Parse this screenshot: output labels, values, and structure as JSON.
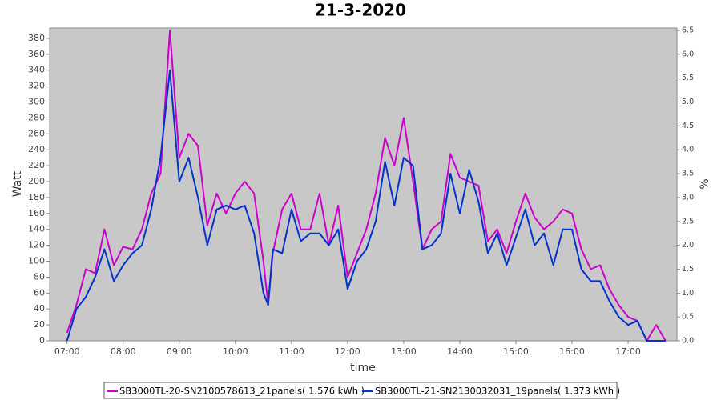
{
  "chart_data": {
    "type": "line",
    "title": "21-3-2020",
    "x_label": "time",
    "y_label": "Watt",
    "y2_label": "%",
    "x": [
      7,
      7.1667,
      7.3333,
      7.5,
      7.6667,
      7.8333,
      8,
      8.1667,
      8.3333,
      8.5,
      8.6667,
      8.8333,
      9,
      9.1667,
      9.3333,
      9.5,
      9.6667,
      9.8333,
      10,
      10.1667,
      10.3333,
      10.5,
      10.5833,
      10.6667,
      10.8333,
      11,
      11.1667,
      11.3333,
      11.5,
      11.6667,
      11.8333,
      12,
      12.1667,
      12.3333,
      12.5,
      12.6667,
      12.8333,
      13,
      13.1667,
      13.3333,
      13.5,
      13.6667,
      13.8333,
      14,
      14.1667,
      14.3333,
      14.5,
      14.6667,
      14.8333,
      15,
      15.1667,
      15.3333,
      15.5,
      15.6667,
      15.8333,
      16,
      16.1667,
      16.3333,
      16.5,
      16.6667,
      16.8333,
      17,
      17.1667,
      17.3333,
      17.5,
      17.6667
    ],
    "series": [
      {
        "name": "SB3000TL-20-SN2100578613_21panels( 1.576 kWh )",
        "color": "#cc00cc",
        "values": [
          10,
          45,
          90,
          85,
          140,
          95,
          118,
          115,
          140,
          185,
          210,
          390,
          230,
          260,
          245,
          145,
          185,
          160,
          185,
          200,
          185,
          100,
          45,
          110,
          165,
          185,
          140,
          140,
          185,
          120,
          170,
          80,
          110,
          140,
          185,
          255,
          220,
          280,
          200,
          115,
          140,
          150,
          235,
          205,
          200,
          195,
          125,
          140,
          110,
          150,
          185,
          155,
          140,
          150,
          165,
          160,
          115,
          90,
          95,
          65,
          45,
          30,
          25,
          0,
          20,
          0
        ]
      },
      {
        "name": "SB3000TL-21-SN2130032031_19panels( 1.373 kWh )",
        "color": "#0033cc",
        "values": [
          0,
          40,
          55,
          80,
          115,
          75,
          95,
          110,
          120,
          165,
          230,
          340,
          200,
          230,
          180,
          120,
          165,
          170,
          165,
          170,
          135,
          60,
          45,
          115,
          110,
          165,
          125,
          135,
          135,
          120,
          140,
          65,
          100,
          115,
          150,
          225,
          170,
          230,
          220,
          115,
          120,
          135,
          210,
          160,
          215,
          175,
          110,
          135,
          95,
          130,
          165,
          120,
          135,
          95,
          140,
          140,
          90,
          75,
          75,
          50,
          30,
          20,
          25,
          0,
          0,
          0
        ]
      }
    ],
    "xlim": [
      6.69,
      17.87
    ],
    "xticks": [
      {
        "value": 7,
        "label": "07:00"
      },
      {
        "value": 8,
        "label": "08:00"
      },
      {
        "value": 9,
        "label": "09:00"
      },
      {
        "value": 10,
        "label": "10:00"
      },
      {
        "value": 11,
        "label": "11:00"
      },
      {
        "value": 12,
        "label": "12:00"
      },
      {
        "value": 13,
        "label": "13:00"
      },
      {
        "value": 14,
        "label": "14:00"
      },
      {
        "value": 15,
        "label": "15:00"
      },
      {
        "value": 16,
        "label": "16:00"
      },
      {
        "value": 17,
        "label": "17:00"
      }
    ],
    "ylim": [
      0,
      393
    ],
    "yticks": [
      0,
      20,
      40,
      60,
      80,
      100,
      120,
      140,
      160,
      180,
      200,
      220,
      240,
      260,
      280,
      300,
      320,
      340,
      360,
      380
    ],
    "y2lim": [
      0,
      6.55
    ],
    "y2ticks": [
      {
        "value": 0,
        "label": "0.0"
      },
      0.5,
      {
        "value": 1,
        "label": "1.0"
      },
      1.5,
      {
        "value": 2,
        "label": "2.0"
      },
      2.5,
      {
        "value": 3,
        "label": "3.0"
      },
      3.5,
      {
        "value": 4,
        "label": "4.0"
      },
      4.5,
      {
        "value": 5,
        "label": "5.0"
      },
      5.5,
      {
        "value": 6,
        "label": "6.0"
      },
      6.5
    ],
    "grid": false
  }
}
